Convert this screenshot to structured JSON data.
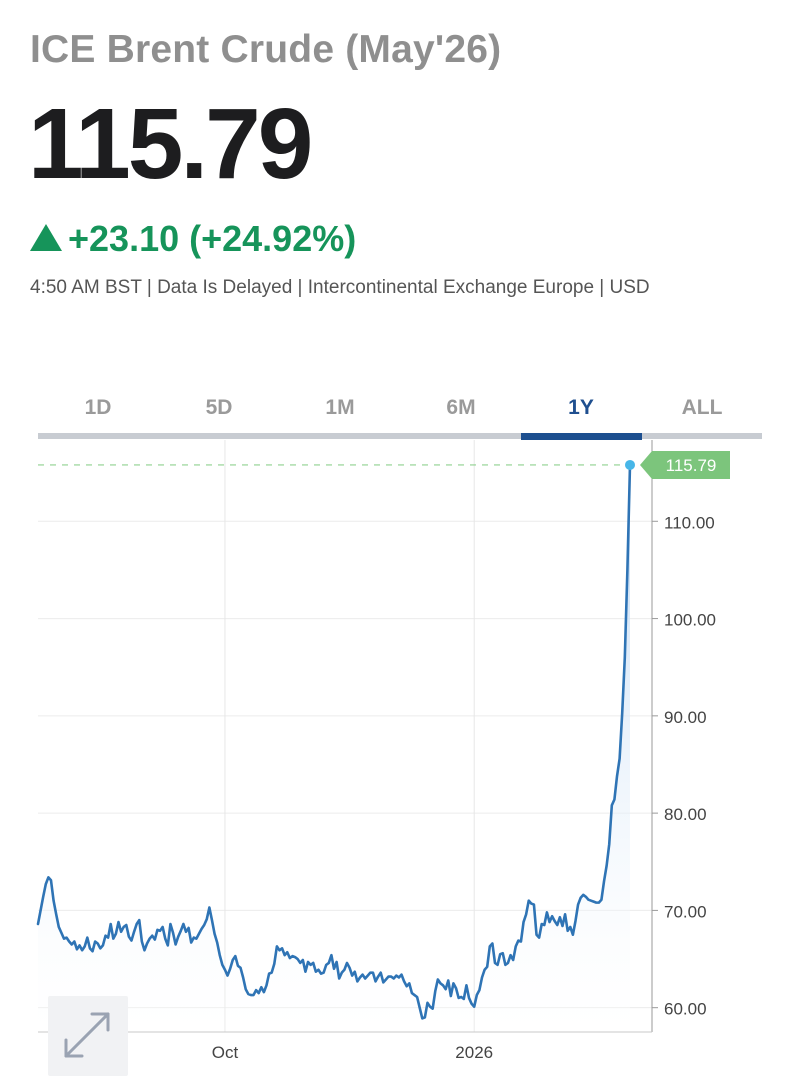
{
  "header": {
    "title": "ICE Brent Crude (May'26)",
    "price": "115.79",
    "change": "+23.10 (+24.92%)",
    "meta": "4:50 AM BST | Data Is Delayed | Intercontinental Exchange Europe | USD"
  },
  "tabs": [
    {
      "label": "1D",
      "active": false
    },
    {
      "label": "5D",
      "active": false
    },
    {
      "label": "1M",
      "active": false
    },
    {
      "label": "6M",
      "active": false
    },
    {
      "label": "1Y",
      "active": true
    },
    {
      "label": "ALL",
      "active": false
    }
  ],
  "colors": {
    "positive": "#16945a",
    "line": "#2f74b5",
    "active_tab": "#1d4f8f",
    "last_price_label": "#7cc57c"
  },
  "expand_icon": "expand-arrows-icon",
  "chart_data": {
    "type": "area",
    "title": "",
    "xlabel": "",
    "ylabel": "",
    "ylim": [
      57.5,
      116.3
    ],
    "yticks": [
      60,
      70,
      80,
      90,
      100,
      110
    ],
    "ytick_labels": [
      "60.00",
      "70.00",
      "80.00",
      "90.00",
      "100.00",
      "110.00"
    ],
    "xticks": [
      {
        "label": "Oct",
        "index": 72
      },
      {
        "label": "2026",
        "index": 168
      }
    ],
    "grid": true,
    "y_axis_position": "right",
    "last_price": {
      "value": 115.79,
      "label": "115.79"
    },
    "values": [
      68.6,
      70.0,
      71.4,
      72.7,
      73.4,
      73.1,
      71.0,
      69.6,
      68.3,
      67.7,
      67.1,
      67.2,
      66.8,
      66.5,
      66.8,
      66.0,
      66.4,
      65.9,
      66.3,
      67.2,
      66.1,
      65.8,
      66.8,
      66.6,
      66.1,
      66.4,
      67.4,
      67.2,
      68.6,
      67.1,
      67.6,
      68.8,
      67.8,
      68.3,
      68.5,
      67.3,
      66.9,
      67.8,
      68.6,
      69.0,
      66.8,
      65.9,
      66.6,
      67.1,
      67.4,
      67.0,
      68.0,
      67.9,
      68.3,
      67.1,
      66.4,
      68.6,
      67.7,
      66.5,
      67.3,
      67.9,
      68.6,
      67.8,
      68.2,
      66.7,
      67.2,
      67.1,
      67.6,
      68.1,
      68.5,
      69.1,
      70.3,
      69.0,
      67.6,
      66.7,
      65.4,
      64.4,
      63.9,
      63.3,
      64.0,
      64.9,
      65.3,
      64.3,
      64.1,
      63.1,
      61.9,
      61.4,
      61.3,
      61.3,
      61.8,
      61.5,
      62.1,
      61.6,
      62.3,
      63.5,
      63.6,
      64.5,
      66.3,
      65.9,
      66.1,
      65.4,
      65.7,
      65.1,
      65.3,
      65.2,
      65.0,
      64.6,
      64.9,
      63.7,
      64.7,
      64.4,
      64.6,
      63.7,
      63.9,
      63.5,
      63.6,
      64.4,
      64.6,
      65.4,
      64.0,
      64.7,
      63.0,
      63.6,
      63.9,
      64.6,
      64.1,
      63.3,
      63.7,
      62.7,
      63.1,
      63.4,
      63.0,
      63.3,
      63.6,
      63.6,
      62.7,
      63.2,
      63.6,
      62.6,
      62.9,
      63.2,
      63.2,
      63.0,
      63.3,
      63.1,
      63.4,
      62.7,
      62.2,
      62.5,
      61.5,
      61.3,
      61.1,
      60.0,
      58.9,
      59.0,
      60.5,
      60.1,
      59.9,
      61.7,
      62.9,
      62.5,
      62.3,
      61.9,
      62.8,
      61.2,
      62.5,
      62.0,
      61.0,
      61.1,
      60.9,
      62.3,
      61.0,
      60.4,
      60.1,
      61.3,
      61.8,
      63.1,
      63.9,
      64.2,
      66.3,
      66.6,
      64.6,
      64.4,
      65.5,
      65.6,
      64.4,
      64.6,
      65.4,
      64.9,
      66.3,
      66.9,
      66.8,
      68.8,
      69.6,
      71.0,
      70.7,
      70.6,
      67.5,
      67.2,
      68.6,
      68.5,
      69.8,
      68.8,
      69.4,
      68.9,
      68.5,
      69.3,
      68.4,
      69.6,
      67.9,
      68.3,
      67.5,
      68.9,
      70.6,
      71.3,
      71.6,
      71.4,
      71.1,
      71.0,
      70.9,
      70.8,
      70.8,
      71.1,
      73.0,
      74.6,
      76.8,
      80.8,
      81.4,
      83.8,
      85.6,
      90.3,
      96.0,
      105.0,
      115.79
    ]
  }
}
